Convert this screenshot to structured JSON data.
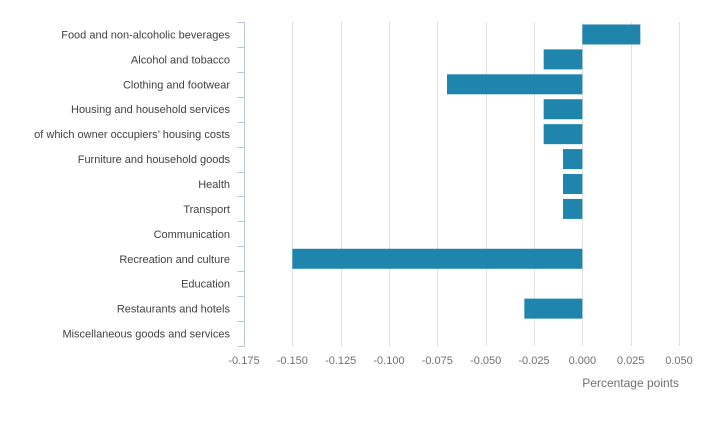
{
  "chart_data": {
    "type": "bar",
    "orientation": "horizontal",
    "title": "",
    "xlabel": "Percentage points",
    "ylabel": "",
    "xlim": [
      -0.175,
      0.05
    ],
    "xticks": [
      -0.175,
      -0.15,
      -0.125,
      -0.1,
      -0.075,
      -0.05,
      -0.025,
      0.0,
      0.025,
      0.05
    ],
    "xtick_labels": [
      "-0.175",
      "-0.150",
      "-0.125",
      "-0.100",
      "-0.075",
      "-0.050",
      "-0.025",
      "0.000",
      "0.025",
      "0.050"
    ],
    "grid": true,
    "bar_color": "#1f85ad",
    "categories": [
      "Food and non-alcoholic beverages",
      "Alcohol and tobacco",
      "Clothing and footwear",
      "Housing and household services",
      "of which owner occupiers’ housing costs",
      "Furniture and household goods",
      "Health",
      "Transport",
      "Communication",
      "Recreation and culture",
      "Education",
      "Restaurants and hotels",
      "Miscellaneous goods and services"
    ],
    "values": [
      0.03,
      -0.02,
      -0.07,
      -0.02,
      -0.02,
      -0.01,
      -0.01,
      -0.01,
      0.0,
      -0.15,
      0.0,
      -0.03,
      0.0
    ]
  }
}
